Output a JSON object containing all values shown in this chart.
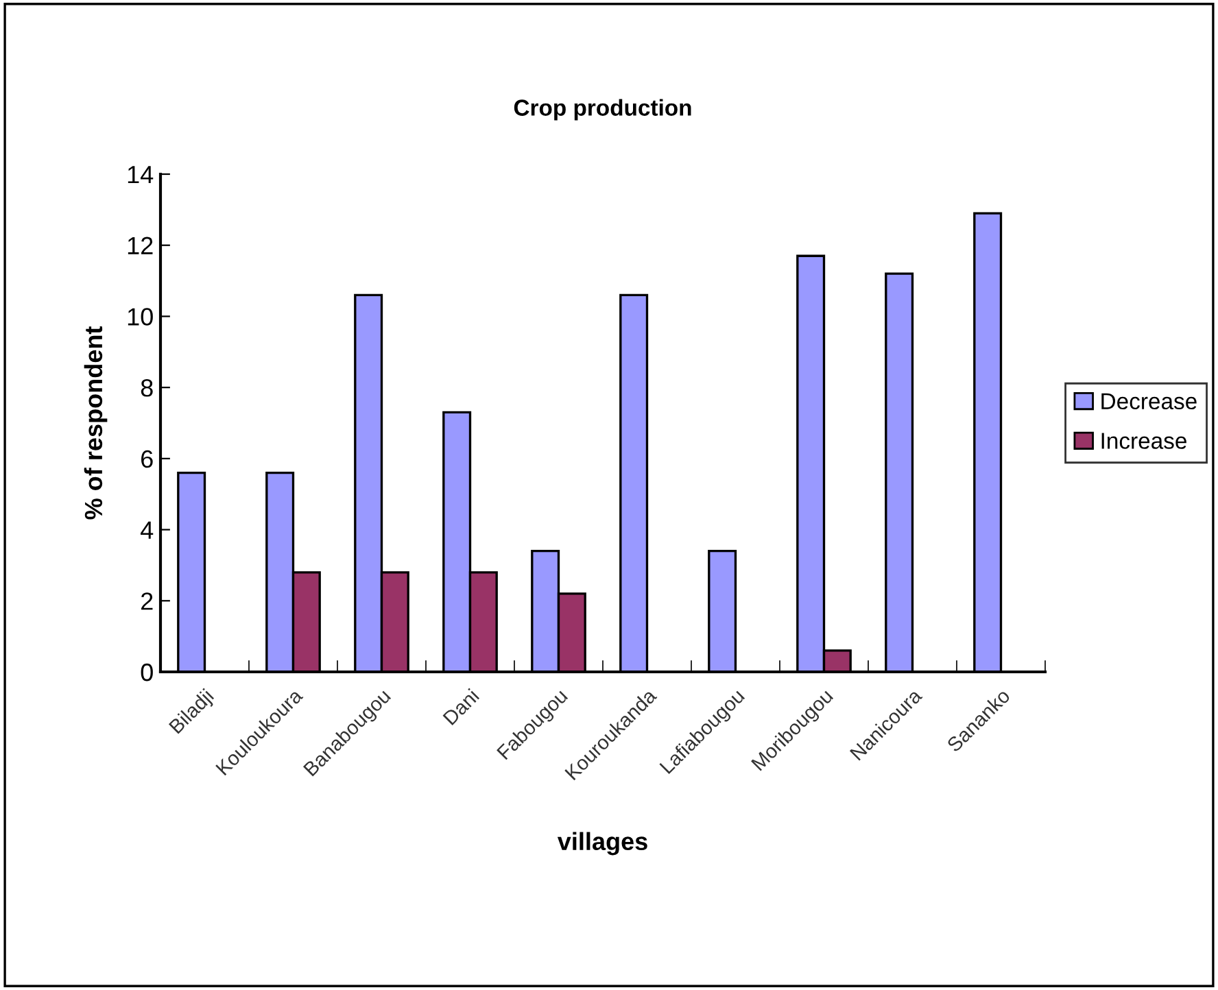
{
  "chart_data": {
    "type": "bar",
    "title": "Crop production",
    "xlabel": "villages",
    "ylabel": "% of respondent",
    "categories": [
      "Biladji",
      "Kouloukoura",
      "Banabougou",
      "Dani",
      "Fabougou",
      "Kouroukanda",
      "Lafiabougou",
      "Moribougou",
      "Nanicoura",
      "Sananko"
    ],
    "series": [
      {
        "name": "Decrease",
        "color": "#9999ff",
        "values": [
          5.6,
          5.6,
          10.6,
          7.3,
          3.4,
          10.6,
          3.4,
          11.7,
          11.2,
          12.9
        ]
      },
      {
        "name": "Increase",
        "color": "#993366",
        "values": [
          null,
          2.8,
          2.8,
          2.8,
          2.2,
          null,
          null,
          0.6,
          null,
          null
        ]
      }
    ],
    "ylim": [
      0,
      14
    ],
    "yticks": [
      0,
      2,
      4,
      6,
      8,
      10,
      12,
      14
    ],
    "grid": false,
    "legend": "right"
  }
}
